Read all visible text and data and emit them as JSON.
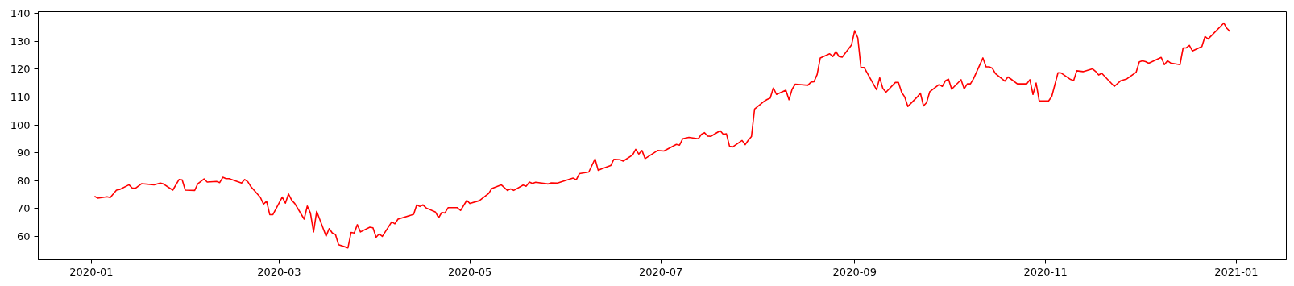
{
  "chart_data": {
    "type": "line",
    "grid": false,
    "xlim": [
      "2019-12-15",
      "2021-01-17"
    ],
    "ylim": [
      51.6,
      140.6
    ],
    "xticks": [
      {
        "value": "2020-01-01",
        "label": "2020-01"
      },
      {
        "value": "2020-03-01",
        "label": "2020-03"
      },
      {
        "value": "2020-05-01",
        "label": "2020-05"
      },
      {
        "value": "2020-07-01",
        "label": "2020-07"
      },
      {
        "value": "2020-09-01",
        "label": "2020-09"
      },
      {
        "value": "2020-11-01",
        "label": "2020-11"
      },
      {
        "value": "2021-01-01",
        "label": "2021-01"
      }
    ],
    "yticks": [
      60,
      70,
      80,
      90,
      100,
      110,
      120,
      130,
      140
    ],
    "x": [
      "2020-01-02",
      "2020-01-03",
      "2020-01-06",
      "2020-01-07",
      "2020-01-09",
      "2020-01-10",
      "2020-01-13",
      "2020-01-14",
      "2020-01-15",
      "2020-01-17",
      "2020-01-21",
      "2020-01-23",
      "2020-01-24",
      "2020-01-27",
      "2020-01-29",
      "2020-01-30",
      "2020-01-31",
      "2020-02-03",
      "2020-02-04",
      "2020-02-06",
      "2020-02-07",
      "2020-02-10",
      "2020-02-11",
      "2020-02-12",
      "2020-02-13",
      "2020-02-14",
      "2020-02-18",
      "2020-02-19",
      "2020-02-20",
      "2020-02-21",
      "2020-02-24",
      "2020-02-25",
      "2020-02-26",
      "2020-02-27",
      "2020-02-28",
      "2020-03-02",
      "2020-03-03",
      "2020-03-04",
      "2020-03-05",
      "2020-03-06",
      "2020-03-09",
      "2020-03-10",
      "2020-03-11",
      "2020-03-12",
      "2020-03-13",
      "2020-03-16",
      "2020-03-17",
      "2020-03-18",
      "2020-03-19",
      "2020-03-20",
      "2020-03-23",
      "2020-03-24",
      "2020-03-25",
      "2020-03-26",
      "2020-03-27",
      "2020-03-30",
      "2020-03-31",
      "2020-04-01",
      "2020-04-02",
      "2020-04-03",
      "2020-04-06",
      "2020-04-07",
      "2020-04-08",
      "2020-04-13",
      "2020-04-14",
      "2020-04-15",
      "2020-04-16",
      "2020-04-17",
      "2020-04-20",
      "2020-04-21",
      "2020-04-22",
      "2020-04-23",
      "2020-04-24",
      "2020-04-27",
      "2020-04-28",
      "2020-04-30",
      "2020-05-01",
      "2020-05-04",
      "2020-05-07",
      "2020-05-08",
      "2020-05-11",
      "2020-05-13",
      "2020-05-14",
      "2020-05-15",
      "2020-05-18",
      "2020-05-19",
      "2020-05-20",
      "2020-05-21",
      "2020-05-22",
      "2020-05-26",
      "2020-05-27",
      "2020-05-29",
      "2020-06-03",
      "2020-06-04",
      "2020-06-05",
      "2020-06-08",
      "2020-06-10",
      "2020-06-11",
      "2020-06-12",
      "2020-06-15",
      "2020-06-16",
      "2020-06-18",
      "2020-06-19",
      "2020-06-22",
      "2020-06-23",
      "2020-06-24",
      "2020-06-25",
      "2020-06-26",
      "2020-06-30",
      "2020-07-02",
      "2020-07-06",
      "2020-07-07",
      "2020-07-08",
      "2020-07-10",
      "2020-07-13",
      "2020-07-14",
      "2020-07-15",
      "2020-07-16",
      "2020-07-17",
      "2020-07-20",
      "2020-07-21",
      "2020-07-22",
      "2020-07-23",
      "2020-07-24",
      "2020-07-27",
      "2020-07-28",
      "2020-07-29",
      "2020-07-30",
      "2020-07-31",
      "2020-08-03",
      "2020-08-04",
      "2020-08-05",
      "2020-08-06",
      "2020-08-07",
      "2020-08-10",
      "2020-08-11",
      "2020-08-12",
      "2020-08-13",
      "2020-08-17",
      "2020-08-18",
      "2020-08-19",
      "2020-08-20",
      "2020-08-21",
      "2020-08-24",
      "2020-08-25",
      "2020-08-26",
      "2020-08-27",
      "2020-08-28",
      "2020-08-31",
      "2020-09-01",
      "2020-09-02",
      "2020-09-03",
      "2020-09-04",
      "2020-09-08",
      "2020-09-09",
      "2020-09-10",
      "2020-09-11",
      "2020-09-14",
      "2020-09-15",
      "2020-09-16",
      "2020-09-17",
      "2020-09-18",
      "2020-09-21",
      "2020-09-22",
      "2020-09-23",
      "2020-09-24",
      "2020-09-25",
      "2020-09-28",
      "2020-09-29",
      "2020-09-30",
      "2020-10-01",
      "2020-10-02",
      "2020-10-05",
      "2020-10-06",
      "2020-10-07",
      "2020-10-08",
      "2020-10-09",
      "2020-10-12",
      "2020-10-13",
      "2020-10-14",
      "2020-10-15",
      "2020-10-16",
      "2020-10-19",
      "2020-10-20",
      "2020-10-21",
      "2020-10-23",
      "2020-10-26",
      "2020-10-27",
      "2020-10-28",
      "2020-10-29",
      "2020-10-30",
      "2020-11-02",
      "2020-11-03",
      "2020-11-05",
      "2020-11-06",
      "2020-11-09",
      "2020-11-10",
      "2020-11-11",
      "2020-11-13",
      "2020-11-16",
      "2020-11-17",
      "2020-11-18",
      "2020-11-19",
      "2020-11-23",
      "2020-11-25",
      "2020-11-27",
      "2020-11-30",
      "2020-12-01",
      "2020-12-02",
      "2020-12-03",
      "2020-12-04",
      "2020-12-08",
      "2020-12-09",
      "2020-12-10",
      "2020-12-11",
      "2020-12-14",
      "2020-12-15",
      "2020-12-16",
      "2020-12-17",
      "2020-12-18",
      "2020-12-21",
      "2020-12-22",
      "2020-12-23",
      "2020-12-28",
      "2020-12-29",
      "2020-12-30"
    ],
    "series": [
      {
        "color": "#ff0000",
        "values": [
          74.4,
          73.7,
          74.2,
          73.9,
          76.6,
          76.8,
          78.5,
          77.4,
          77.2,
          78.9,
          78.5,
          79.1,
          78.8,
          76.6,
          80.4,
          80.3,
          76.6,
          76.5,
          78.9,
          80.6,
          79.5,
          79.7,
          79.3,
          81.2,
          80.7,
          80.7,
          79.1,
          80.4,
          79.6,
          77.8,
          74.0,
          71.6,
          72.6,
          67.8,
          67.8,
          74.1,
          71.9,
          75.2,
          73.0,
          71.8,
          66.2,
          70.9,
          68.4,
          61.6,
          69.0,
          60.1,
          62.8,
          61.2,
          60.7,
          57.0,
          55.9,
          61.4,
          61.2,
          64.2,
          61.6,
          63.3,
          63.1,
          59.7,
          60.9,
          60.0,
          65.2,
          64.5,
          66.2,
          67.9,
          71.3,
          70.7,
          71.3,
          70.2,
          68.7,
          66.7,
          68.6,
          68.4,
          70.3,
          70.3,
          69.3,
          72.9,
          71.8,
          72.8,
          75.4,
          77.2,
          78.5,
          76.5,
          77.0,
          76.5,
          78.4,
          78.0,
          79.5,
          79.0,
          79.4,
          78.8,
          79.2,
          79.1,
          80.9,
          80.3,
          82.5,
          83.1,
          87.8,
          83.7,
          84.2,
          85.4,
          87.6,
          87.5,
          87.0,
          89.2,
          91.2,
          89.5,
          90.8,
          87.9,
          90.8,
          90.6,
          93.0,
          92.7,
          95.0,
          95.5,
          95.0,
          96.6,
          97.2,
          96.0,
          95.9,
          97.9,
          96.6,
          96.8,
          92.3,
          92.1,
          94.4,
          92.9,
          94.5,
          95.8,
          105.7,
          108.4,
          109.1,
          109.6,
          113.3,
          110.9,
          112.4,
          109.0,
          112.8,
          114.6,
          114.2,
          115.3,
          115.5,
          118.1,
          124.0,
          125.5,
          124.5,
          126.3,
          124.5,
          124.3,
          128.7,
          133.8,
          131.2,
          120.6,
          120.6,
          112.6,
          116.9,
          113.1,
          111.7,
          115.2,
          115.2,
          111.7,
          110.0,
          106.6,
          110.0,
          111.4,
          106.8,
          108.0,
          111.9,
          114.5,
          113.8,
          115.8,
          116.4,
          112.8,
          116.2,
          112.9,
          114.7,
          114.7,
          116.6,
          124.0,
          120.8,
          120.8,
          120.3,
          118.4,
          115.7,
          117.2,
          116.4,
          114.7,
          114.7,
          116.2,
          110.9,
          115.0,
          108.6,
          108.6,
          110.2,
          118.7,
          118.6,
          116.3,
          115.9,
          119.4,
          119.1,
          120.1,
          119.2,
          117.9,
          118.5,
          113.8,
          115.8,
          116.5,
          118.9,
          122.6,
          123.0,
          122.7,
          122.1,
          124.2,
          121.6,
          123.0,
          122.2,
          121.6,
          127.6,
          127.6,
          128.5,
          126.5,
          128.1,
          131.7,
          130.8,
          136.5,
          134.6,
          133.5
        ]
      }
    ]
  }
}
